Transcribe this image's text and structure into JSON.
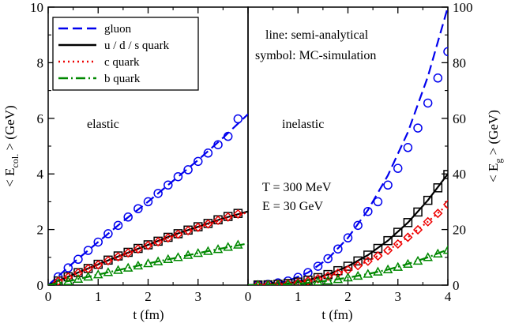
{
  "chart_data": [
    {
      "type": "line",
      "panel": "left",
      "xlabel": "t (fm)",
      "ylabel": "< E_col. > (GeV)",
      "ylabel_main": "< E",
      "ylabel_sub": "col.",
      "ylabel_tail": " > (GeV)",
      "xlim": [
        0,
        4
      ],
      "ylim": [
        0,
        10
      ],
      "x_ticks": [
        "0",
        "1",
        "2",
        "3"
      ],
      "y_ticks": [
        "0",
        "2",
        "4",
        "6",
        "8",
        "10"
      ],
      "annotation": "elastic",
      "series": [
        {
          "name": "gluon",
          "color": "#0000ee",
          "dash": "dashed",
          "marker": "circle",
          "line": [
            [
              0.0,
              0.0
            ],
            [
              0.5,
              0.8
            ],
            [
              1.0,
              1.55
            ],
            [
              1.5,
              2.3
            ],
            [
              2.0,
              3.0
            ],
            [
              2.5,
              3.75
            ],
            [
              3.0,
              4.5
            ],
            [
              3.5,
              5.3
            ],
            [
              4.0,
              6.15
            ]
          ],
          "points": [
            [
              0.2,
              0.3
            ],
            [
              0.4,
              0.62
            ],
            [
              0.6,
              0.93
            ],
            [
              0.8,
              1.25
            ],
            [
              1.0,
              1.55
            ],
            [
              1.2,
              1.85
            ],
            [
              1.4,
              2.15
            ],
            [
              1.6,
              2.45
            ],
            [
              1.8,
              2.75
            ],
            [
              2.0,
              3.0
            ],
            [
              2.2,
              3.3
            ],
            [
              2.4,
              3.6
            ],
            [
              2.6,
              3.9
            ],
            [
              2.8,
              4.15
            ],
            [
              3.0,
              4.45
            ],
            [
              3.2,
              4.75
            ],
            [
              3.4,
              5.05
            ],
            [
              3.6,
              5.35
            ],
            [
              3.8,
              5.98
            ]
          ]
        },
        {
          "name": "u / d / s quark",
          "color": "#000000",
          "dash": "solid",
          "marker": "square",
          "line": [
            [
              0.0,
              0.0
            ],
            [
              0.5,
              0.38
            ],
            [
              1.0,
              0.75
            ],
            [
              1.5,
              1.1
            ],
            [
              2.0,
              1.45
            ],
            [
              2.5,
              1.8
            ],
            [
              3.0,
              2.1
            ],
            [
              3.5,
              2.4
            ],
            [
              4.0,
              2.65
            ]
          ],
          "points": [
            [
              0.2,
              0.15
            ],
            [
              0.4,
              0.3
            ],
            [
              0.6,
              0.45
            ],
            [
              0.8,
              0.6
            ],
            [
              1.0,
              0.75
            ],
            [
              1.2,
              0.9
            ],
            [
              1.4,
              1.05
            ],
            [
              1.6,
              1.18
            ],
            [
              1.8,
              1.32
            ],
            [
              2.0,
              1.45
            ],
            [
              2.2,
              1.58
            ],
            [
              2.4,
              1.72
            ],
            [
              2.6,
              1.85
            ],
            [
              2.8,
              1.98
            ],
            [
              3.0,
              2.1
            ],
            [
              3.2,
              2.22
            ],
            [
              3.4,
              2.35
            ],
            [
              3.6,
              2.47
            ],
            [
              3.8,
              2.58
            ]
          ]
        },
        {
          "name": "c quark",
          "color": "#ee0000",
          "dash": "dotted",
          "marker": "diamond",
          "line": [
            [
              0.0,
              0.0
            ],
            [
              0.5,
              0.37
            ],
            [
              1.0,
              0.73
            ],
            [
              1.5,
              1.08
            ],
            [
              2.0,
              1.42
            ],
            [
              2.5,
              1.76
            ],
            [
              3.0,
              2.07
            ],
            [
              3.5,
              2.37
            ],
            [
              4.0,
              2.62
            ]
          ],
          "points": [
            [
              0.2,
              0.14
            ],
            [
              0.4,
              0.29
            ],
            [
              0.6,
              0.44
            ],
            [
              0.8,
              0.59
            ],
            [
              1.0,
              0.73
            ],
            [
              1.2,
              0.88
            ],
            [
              1.4,
              1.02
            ],
            [
              1.6,
              1.16
            ],
            [
              1.8,
              1.3
            ],
            [
              2.0,
              1.43
            ],
            [
              2.2,
              1.56
            ],
            [
              2.4,
              1.7
            ],
            [
              2.6,
              1.83
            ],
            [
              2.8,
              1.96
            ],
            [
              3.0,
              2.08
            ],
            [
              3.2,
              2.2
            ],
            [
              3.4,
              2.33
            ],
            [
              3.6,
              2.45
            ],
            [
              3.8,
              2.56
            ]
          ]
        },
        {
          "name": "b quark",
          "color": "#008800",
          "dash": "dashdot",
          "marker": "triangle",
          "line": [
            [
              0.0,
              0.0
            ],
            [
              0.5,
              0.18
            ],
            [
              1.0,
              0.38
            ],
            [
              1.5,
              0.58
            ],
            [
              2.0,
              0.78
            ],
            [
              2.5,
              0.96
            ],
            [
              3.0,
              1.15
            ],
            [
              3.5,
              1.33
            ],
            [
              4.0,
              1.5
            ]
          ],
          "points": [
            [
              0.2,
              0.07
            ],
            [
              0.4,
              0.14
            ],
            [
              0.6,
              0.22
            ],
            [
              0.8,
              0.3
            ],
            [
              1.0,
              0.38
            ],
            [
              1.2,
              0.46
            ],
            [
              1.4,
              0.54
            ],
            [
              1.6,
              0.62
            ],
            [
              1.8,
              0.7
            ],
            [
              2.0,
              0.78
            ],
            [
              2.2,
              0.85
            ],
            [
              2.4,
              0.93
            ],
            [
              2.6,
              1.0
            ],
            [
              2.8,
              1.08
            ],
            [
              3.0,
              1.15
            ],
            [
              3.2,
              1.22
            ],
            [
              3.4,
              1.29
            ],
            [
              3.6,
              1.37
            ],
            [
              3.8,
              1.45
            ]
          ]
        }
      ]
    },
    {
      "type": "line",
      "panel": "right",
      "xlabel": "t (fm)",
      "ylabel": "< E_g > (GeV)",
      "ylabel_main": "< E",
      "ylabel_sub": "g",
      "ylabel_tail": " > (GeV)",
      "xlim": [
        0,
        4
      ],
      "ylim": [
        0,
        100
      ],
      "x_ticks": [
        "0",
        "1",
        "2",
        "3",
        "4"
      ],
      "y_ticks": [
        "0",
        "20",
        "40",
        "60",
        "80",
        "100"
      ],
      "annotation": "inelastic",
      "series": [
        {
          "name": "gluon",
          "color": "#0000ee",
          "dash": "dashed",
          "marker": "circle",
          "line": [
            [
              0.0,
              0.0
            ],
            [
              0.4,
              0.3
            ],
            [
              0.8,
              1.5
            ],
            [
              1.2,
              4.5
            ],
            [
              1.6,
              9.5
            ],
            [
              2.0,
              17.0
            ],
            [
              2.4,
              27.0
            ],
            [
              2.8,
              39.5
            ],
            [
              3.2,
              55.0
            ],
            [
              3.6,
              75.0
            ],
            [
              4.0,
              100.0
            ]
          ],
          "points": [
            [
              0.2,
              0.1
            ],
            [
              0.4,
              0.3
            ],
            [
              0.6,
              0.8
            ],
            [
              0.8,
              1.5
            ],
            [
              1.0,
              2.8
            ],
            [
              1.2,
              4.5
            ],
            [
              1.4,
              6.8
            ],
            [
              1.6,
              9.5
            ],
            [
              1.8,
              13.0
            ],
            [
              2.0,
              17.0
            ],
            [
              2.2,
              21.5
            ],
            [
              2.4,
              26.5
            ],
            [
              2.6,
              30.0
            ],
            [
              2.8,
              36.0
            ],
            [
              3.0,
              42.0
            ],
            [
              3.2,
              49.5
            ],
            [
              3.4,
              56.5
            ],
            [
              3.6,
              65.5
            ],
            [
              3.8,
              74.5
            ],
            [
              4.0,
              84.0
            ],
            [
              4.2,
              93.5
            ]
          ]
        },
        {
          "name": "u / d / s quark",
          "color": "#000000",
          "dash": "solid",
          "marker": "square",
          "line": [
            [
              0.0,
              0.0
            ],
            [
              0.4,
              0.1
            ],
            [
              0.8,
              0.6
            ],
            [
              1.2,
              1.8
            ],
            [
              1.6,
              3.8
            ],
            [
              2.0,
              6.8
            ],
            [
              2.4,
              10.8
            ],
            [
              2.8,
              16.0
            ],
            [
              3.2,
              22.5
            ],
            [
              3.6,
              30.5
            ],
            [
              4.0,
              40.0
            ],
            [
              4.4,
              44.0
            ]
          ],
          "points": [
            [
              0.2,
              0.05
            ],
            [
              0.4,
              0.1
            ],
            [
              0.6,
              0.3
            ],
            [
              0.8,
              0.6
            ],
            [
              1.0,
              1.1
            ],
            [
              1.2,
              1.8
            ],
            [
              1.4,
              2.7
            ],
            [
              1.6,
              3.8
            ],
            [
              1.8,
              5.2
            ],
            [
              2.0,
              6.8
            ],
            [
              2.2,
              8.7
            ],
            [
              2.4,
              10.8
            ],
            [
              2.6,
              13.2
            ],
            [
              2.8,
              16.0
            ],
            [
              3.0,
              19.0
            ],
            [
              3.2,
              22.5
            ],
            [
              3.4,
              26.3
            ],
            [
              3.6,
              30.5
            ],
            [
              3.8,
              35.0
            ],
            [
              4.0,
              39.8
            ]
          ]
        },
        {
          "name": "c quark",
          "color": "#ee0000",
          "dash": "dotted",
          "marker": "diamond",
          "line": [
            [
              0.0,
              0.0
            ],
            [
              0.4,
              0.1
            ],
            [
              0.8,
              0.5
            ],
            [
              1.2,
              1.5
            ],
            [
              1.6,
              3.2
            ],
            [
              2.0,
              5.5
            ],
            [
              2.4,
              8.6
            ],
            [
              2.8,
              12.5
            ],
            [
              3.2,
              17.2
            ],
            [
              3.6,
              22.8
            ],
            [
              4.0,
              29.0
            ],
            [
              4.2,
              31.0
            ]
          ],
          "points": [
            [
              0.2,
              0.05
            ],
            [
              0.4,
              0.1
            ],
            [
              0.6,
              0.25
            ],
            [
              0.8,
              0.5
            ],
            [
              1.0,
              0.9
            ],
            [
              1.2,
              1.5
            ],
            [
              1.4,
              2.3
            ],
            [
              1.6,
              3.2
            ],
            [
              1.8,
              4.3
            ],
            [
              2.0,
              5.5
            ],
            [
              2.2,
              7.0
            ],
            [
              2.4,
              8.6
            ],
            [
              2.6,
              10.5
            ],
            [
              2.8,
              12.5
            ],
            [
              3.0,
              14.8
            ],
            [
              3.2,
              17.2
            ],
            [
              3.4,
              19.9
            ],
            [
              3.6,
              22.8
            ],
            [
              3.8,
              25.8
            ],
            [
              4.0,
              29.0
            ]
          ]
        },
        {
          "name": "b quark",
          "color": "#008800",
          "dash": "dashdot",
          "marker": "triangle",
          "line": [
            [
              0.0,
              0.0
            ],
            [
              0.4,
              0.05
            ],
            [
              0.8,
              0.3
            ],
            [
              1.2,
              0.8
            ],
            [
              1.6,
              1.6
            ],
            [
              2.0,
              2.7
            ],
            [
              2.4,
              4.0
            ],
            [
              2.8,
              5.6
            ],
            [
              3.2,
              7.6
            ],
            [
              3.6,
              10.0
            ],
            [
              4.0,
              12.8
            ],
            [
              4.2,
              13.5
            ]
          ],
          "points": [
            [
              0.2,
              0.02
            ],
            [
              0.4,
              0.05
            ],
            [
              0.6,
              0.15
            ],
            [
              0.8,
              0.3
            ],
            [
              1.0,
              0.5
            ],
            [
              1.2,
              0.8
            ],
            [
              1.4,
              1.2
            ],
            [
              1.6,
              1.6
            ],
            [
              1.8,
              2.1
            ],
            [
              2.0,
              2.7
            ],
            [
              2.2,
              3.3
            ],
            [
              2.4,
              4.0
            ],
            [
              2.6,
              4.8
            ],
            [
              2.8,
              5.6
            ],
            [
              3.0,
              6.5
            ],
            [
              3.2,
              7.6
            ],
            [
              3.4,
              8.7
            ],
            [
              3.6,
              10.0
            ],
            [
              3.8,
              11.3
            ],
            [
              4.0,
              12.6
            ]
          ]
        }
      ]
    }
  ],
  "legend": {
    "items": [
      "gluon",
      "u / d / s quark",
      "c quark",
      "b quark"
    ],
    "placement": "top-left"
  },
  "annotations": {
    "method_line": "line: semi-analytical",
    "method_symbol": "symbol: MC-simulation",
    "temperature": "T = 300 MeV",
    "energy": "E = 30 GeV"
  }
}
